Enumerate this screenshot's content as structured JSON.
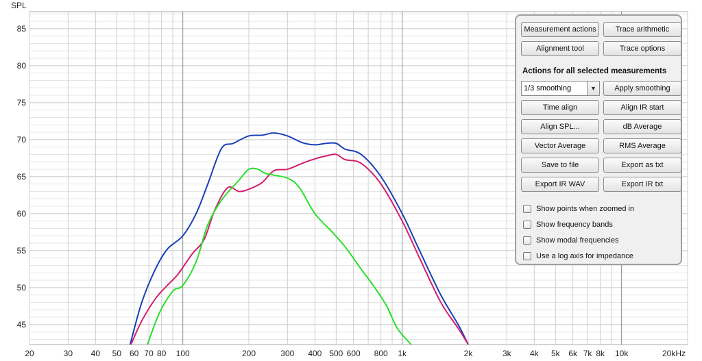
{
  "chart_data": {
    "type": "line",
    "ylabel": "SPL",
    "xscale": "log",
    "xlim": [
      20,
      20000
    ],
    "ylim": [
      42.3,
      87.3
    ],
    "grid": true,
    "y_ticks": [
      45,
      50,
      55,
      60,
      65,
      70,
      75,
      80,
      85
    ],
    "x_ticks": [
      {
        "v": 20,
        "label": "20"
      },
      {
        "v": 30,
        "label": "30"
      },
      {
        "v": 40,
        "label": "40"
      },
      {
        "v": 50,
        "label": "50"
      },
      {
        "v": 60,
        "label": "60"
      },
      {
        "v": 70,
        "label": "70"
      },
      {
        "v": 80,
        "label": "80"
      },
      {
        "v": 100,
        "label": "100"
      },
      {
        "v": 200,
        "label": "200"
      },
      {
        "v": 300,
        "label": "300"
      },
      {
        "v": 400,
        "label": "400"
      },
      {
        "v": 500,
        "label": "500"
      },
      {
        "v": 600,
        "label": "600"
      },
      {
        "v": 800,
        "label": "800"
      },
      {
        "v": 1000,
        "label": "1k"
      },
      {
        "v": 2000,
        "label": "2k"
      },
      {
        "v": 3000,
        "label": "3k"
      },
      {
        "v": 4000,
        "label": "4k"
      },
      {
        "v": 5000,
        "label": "5k"
      },
      {
        "v": 6000,
        "label": "6k"
      },
      {
        "v": 7000,
        "label": "7k"
      },
      {
        "v": 8000,
        "label": "8k"
      },
      {
        "v": 10000,
        "label": "10k"
      },
      {
        "v": 20000,
        "label": "20kHz"
      }
    ],
    "series": [
      {
        "color": "#1a3fb8",
        "points": [
          [
            57.5,
            42.3
          ],
          [
            65,
            48
          ],
          [
            75,
            52.5
          ],
          [
            85,
            55.2
          ],
          [
            100,
            57
          ],
          [
            115,
            60
          ],
          [
            130,
            64
          ],
          [
            150,
            68.8
          ],
          [
            170,
            69.5
          ],
          [
            200,
            70.5
          ],
          [
            230,
            70.6
          ],
          [
            260,
            70.9
          ],
          [
            300,
            70.5
          ],
          [
            350,
            69.6
          ],
          [
            400,
            69.3
          ],
          [
            450,
            69.5
          ],
          [
            500,
            69.5
          ],
          [
            550,
            68.7
          ],
          [
            650,
            68
          ],
          [
            800,
            65
          ],
          [
            1000,
            60
          ],
          [
            1200,
            55
          ],
          [
            1500,
            49
          ],
          [
            1800,
            45
          ],
          [
            2000,
            42.3
          ]
        ]
      },
      {
        "color": "#d41e6e",
        "points": [
          [
            58,
            42.3
          ],
          [
            65,
            45.5
          ],
          [
            75,
            48.5
          ],
          [
            85,
            50.3
          ],
          [
            95,
            51.8
          ],
          [
            110,
            54.5
          ],
          [
            125,
            56.5
          ],
          [
            140,
            60.5
          ],
          [
            160,
            63.5
          ],
          [
            180,
            63
          ],
          [
            200,
            63.3
          ],
          [
            230,
            64.2
          ],
          [
            260,
            65.8
          ],
          [
            300,
            66
          ],
          [
            350,
            66.8
          ],
          [
            400,
            67.4
          ],
          [
            450,
            67.8
          ],
          [
            500,
            68
          ],
          [
            550,
            67.3
          ],
          [
            650,
            66.8
          ],
          [
            800,
            64
          ],
          [
            1000,
            59
          ],
          [
            1200,
            54
          ],
          [
            1500,
            48
          ],
          [
            1800,
            44.5
          ],
          [
            2000,
            42.3
          ]
        ]
      },
      {
        "color": "#28e028",
        "points": [
          [
            69,
            42.3
          ],
          [
            78,
            46.5
          ],
          [
            90,
            49.5
          ],
          [
            100,
            50.3
          ],
          [
            115,
            53.5
          ],
          [
            130,
            58.5
          ],
          [
            150,
            61.8
          ],
          [
            180,
            64.5
          ],
          [
            200,
            66
          ],
          [
            220,
            66
          ],
          [
            240,
            65.4
          ],
          [
            300,
            64.8
          ],
          [
            340,
            63.5
          ],
          [
            400,
            60
          ],
          [
            480,
            57.5
          ],
          [
            550,
            55.5
          ],
          [
            650,
            52.5
          ],
          [
            750,
            50
          ],
          [
            850,
            47.5
          ],
          [
            950,
            44.5
          ],
          [
            1100,
            42.3
          ]
        ]
      }
    ]
  },
  "panel": {
    "buttons_top": [
      [
        "Measurement actions",
        "Trace arithmetic"
      ],
      [
        "Alignment tool",
        "Trace options"
      ]
    ],
    "section_title": "Actions for all selected measurements",
    "smoothing_value": "1/3 smoothing",
    "apply_smoothing": "Apply smoothing",
    "buttons_actions": [
      [
        "Time align",
        "Align IR start"
      ],
      [
        "Align SPL...",
        "dB Average"
      ],
      [
        "Vector Average",
        "RMS Average"
      ],
      [
        "Save to file",
        "Export as txt"
      ],
      [
        "Export IR WAV",
        "Export IR txt"
      ]
    ],
    "checkboxes": [
      "Show points when zoomed in",
      "Show frequency bands",
      "Show modal frequencies",
      "Use a log axis for impedance"
    ]
  }
}
